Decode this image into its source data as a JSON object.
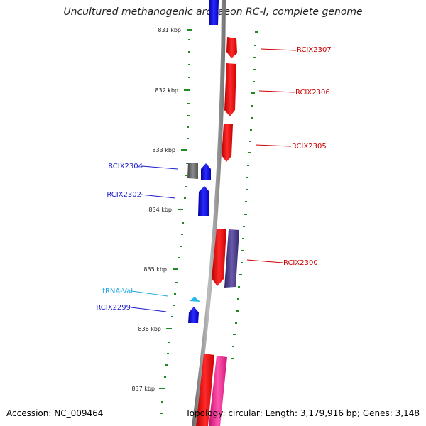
{
  "header": {
    "title": "Uncultured methanogenic archaeon RC-I, complete genome"
  },
  "footer": {
    "accession": "Accession: NC_009464",
    "summary": "Topology: circular; Length: 3,179,916 bp; Genes: 3,148"
  },
  "scale": {
    "labels": [
      "831 kbp",
      "832 kbp",
      "833 kbp",
      "834 kbp",
      "835 kbp",
      "836 kbp",
      "837 kbp"
    ],
    "tick_color": "#1f8a1f"
  },
  "colors": {
    "forward_gene": "#ee1111",
    "reverse_gene": "#1010e0",
    "gray_gene": "#6a6a6a",
    "purple_gene": "#4a3a8a",
    "pink_gene": "#ee2290",
    "trna": "#22b8e8",
    "backbone": "#8a8a8a",
    "label_red": "#cc0000",
    "label_blue": "#1a1acc",
    "label_cyan": "#22aadd"
  },
  "genes_right": [
    {
      "label": "RCIX2307"
    },
    {
      "label": "RCIX2306"
    },
    {
      "label": "RCIX2305"
    },
    {
      "label": "RCIX2300"
    }
  ],
  "genes_left": [
    {
      "label": "RCIX2304"
    },
    {
      "label": "RCIX2302"
    },
    {
      "label": "tRNA-Val"
    },
    {
      "label": "RCIX2299"
    }
  ]
}
